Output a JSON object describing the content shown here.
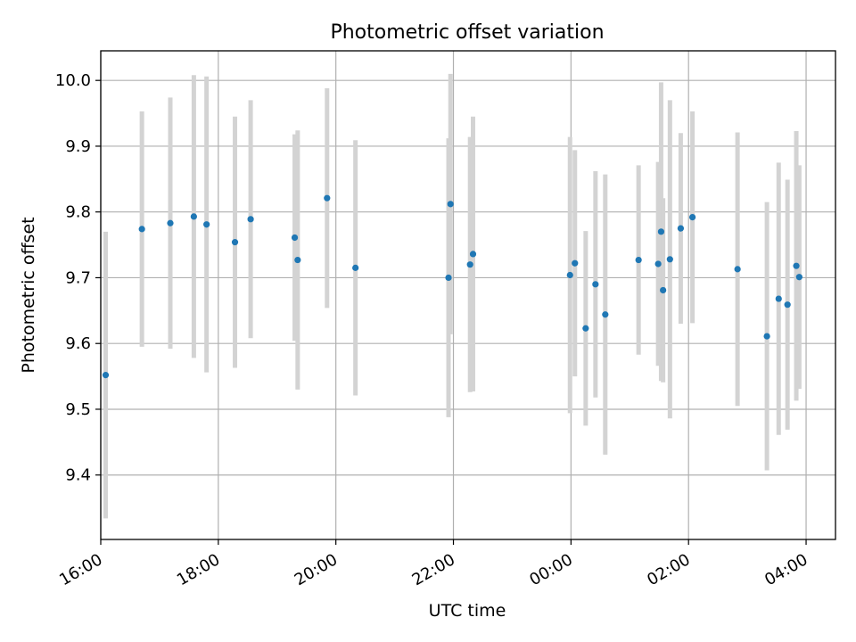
{
  "chart_data": {
    "type": "scatter",
    "title": "Photometric offset variation",
    "xlabel": "UTC time",
    "ylabel": "Photometric offset",
    "xlim": [
      "16:00",
      "28:30"
    ],
    "ylim": [
      9.302,
      10.045
    ],
    "grid": true,
    "x_ticks": [
      "16:00",
      "18:00",
      "20:00",
      "22:00",
      "00:00",
      "02:00",
      "04:00"
    ],
    "y_ticks": [
      "9.4",
      "9.5",
      "9.6",
      "9.7",
      "9.8",
      "9.9",
      "10.0"
    ],
    "colors": {
      "point": "#1f77b4",
      "errorbar": "#d3d3d3",
      "grid": "#b0b0b0"
    },
    "points": [
      {
        "t": "16:05",
        "y": 9.552,
        "err": 0.218
      },
      {
        "t": "16:42",
        "y": 9.774,
        "err": 0.179
      },
      {
        "t": "17:11",
        "y": 9.783,
        "err": 0.191
      },
      {
        "t": "17:35",
        "y": 9.793,
        "err": 0.215
      },
      {
        "t": "17:48",
        "y": 9.781,
        "err": 0.225
      },
      {
        "t": "18:17",
        "y": 9.754,
        "err": 0.191
      },
      {
        "t": "18:33",
        "y": 9.789,
        "err": 0.181
      },
      {
        "t": "19:18",
        "y": 9.761,
        "err": 0.157
      },
      {
        "t": "19:21",
        "y": 9.727,
        "err": 0.197
      },
      {
        "t": "19:51",
        "y": 9.821,
        "err": 0.167
      },
      {
        "t": "20:20",
        "y": 9.715,
        "err": 0.194
      },
      {
        "t": "21:55",
        "y": 9.7,
        "err": 0.212
      },
      {
        "t": "21:57",
        "y": 9.812,
        "err": 0.198
      },
      {
        "t": "22:17",
        "y": 9.72,
        "err": 0.194
      },
      {
        "t": "22:20",
        "y": 9.736,
        "err": 0.209
      },
      {
        "t": "23:59",
        "y": 9.704,
        "err": 0.21
      },
      {
        "t": "00:04",
        "y": 9.722,
        "err": 0.172
      },
      {
        "t": "00:15",
        "y": 9.623,
        "err": 0.148
      },
      {
        "t": "00:25",
        "y": 9.69,
        "err": 0.172
      },
      {
        "t": "00:35",
        "y": 9.644,
        "err": 0.213
      },
      {
        "t": "01:09",
        "y": 9.727,
        "err": 0.144
      },
      {
        "t": "01:29",
        "y": 9.721,
        "err": 0.155
      },
      {
        "t": "01:32",
        "y": 9.77,
        "err": 0.227
      },
      {
        "t": "01:34",
        "y": 9.681,
        "err": 0.14
      },
      {
        "t": "01:41",
        "y": 9.728,
        "err": 0.242
      },
      {
        "t": "01:52",
        "y": 9.775,
        "err": 0.145
      },
      {
        "t": "02:04",
        "y": 9.792,
        "err": 0.161
      },
      {
        "t": "02:50",
        "y": 9.713,
        "err": 0.208
      },
      {
        "t": "03:20",
        "y": 9.611,
        "err": 0.204
      },
      {
        "t": "03:32",
        "y": 9.668,
        "err": 0.207
      },
      {
        "t": "03:41",
        "y": 9.659,
        "err": 0.19
      },
      {
        "t": "03:50",
        "y": 9.718,
        "err": 0.205
      },
      {
        "t": "03:53",
        "y": 9.701,
        "err": 0.17
      }
    ]
  }
}
